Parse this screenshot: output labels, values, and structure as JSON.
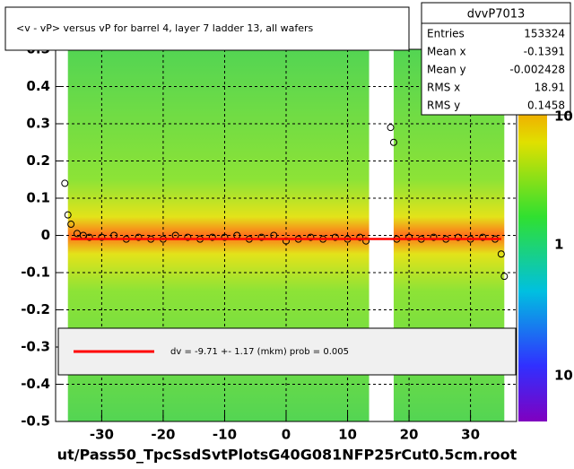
{
  "chart_data": {
    "type": "scatter",
    "title": "<v - vP>       versus   vP for barrel 4, layer 7 ladder 13, all wafers",
    "footer": "ut/Pass50_TpcSsdSvtPlotsG40G081NFP25rCut0.5cm.root",
    "xlim": [
      -37.5,
      37.5
    ],
    "ylim": [
      -0.5,
      0.5
    ],
    "xticks": [
      -30,
      -20,
      -10,
      0,
      10,
      20,
      30
    ],
    "yticks": [
      -0.5,
      -0.4,
      -0.3,
      -0.2,
      -0.1,
      0,
      0.1,
      0.2,
      0.3,
      0.4,
      0.5
    ],
    "grid": true,
    "series": [
      {
        "name": "profile",
        "color": "#000000",
        "x": [
          -36,
          -35.5,
          -35,
          -34,
          -33,
          -32,
          -30,
          -28,
          -26,
          -24,
          -22,
          -20,
          -18,
          -16,
          -14,
          -12,
          -10,
          -8,
          -6,
          -4,
          -2,
          0,
          2,
          4,
          6,
          8,
          10,
          12,
          13,
          17,
          17.5,
          18,
          20,
          22,
          24,
          26,
          28,
          30,
          32,
          34,
          35,
          35.5
        ],
        "values": [
          0.14,
          0.055,
          0.03,
          0.005,
          0.0,
          -0.005,
          -0.005,
          0.0,
          -0.01,
          -0.005,
          -0.01,
          -0.01,
          0.0,
          -0.005,
          -0.01,
          -0.005,
          -0.005,
          0.0,
          -0.01,
          -0.005,
          0.0,
          -0.015,
          -0.01,
          -0.005,
          -0.01,
          -0.005,
          -0.01,
          -0.005,
          -0.015,
          0.29,
          0.25,
          -0.01,
          -0.005,
          -0.01,
          -0.005,
          -0.01,
          -0.005,
          -0.01,
          -0.005,
          -0.01,
          -0.05,
          -0.11
        ]
      }
    ],
    "fit": {
      "name": "dv =   -9.71 +-  1.17 (mkm) prob = 0.005",
      "color": "#ff0000",
      "value": -0.00971,
      "xrange": [
        -35,
        35
      ]
    },
    "stats": {
      "title": "dvvP7013",
      "rows": [
        [
          "Entries",
          "153324"
        ],
        [
          "Mean x",
          "-0.1391"
        ],
        [
          "Mean y",
          "-0.002428"
        ],
        [
          "RMS x",
          "18.91"
        ],
        [
          "RMS y",
          "0.1458"
        ]
      ]
    },
    "palette_labels": [
      "10",
      "1",
      "10"
    ]
  }
}
